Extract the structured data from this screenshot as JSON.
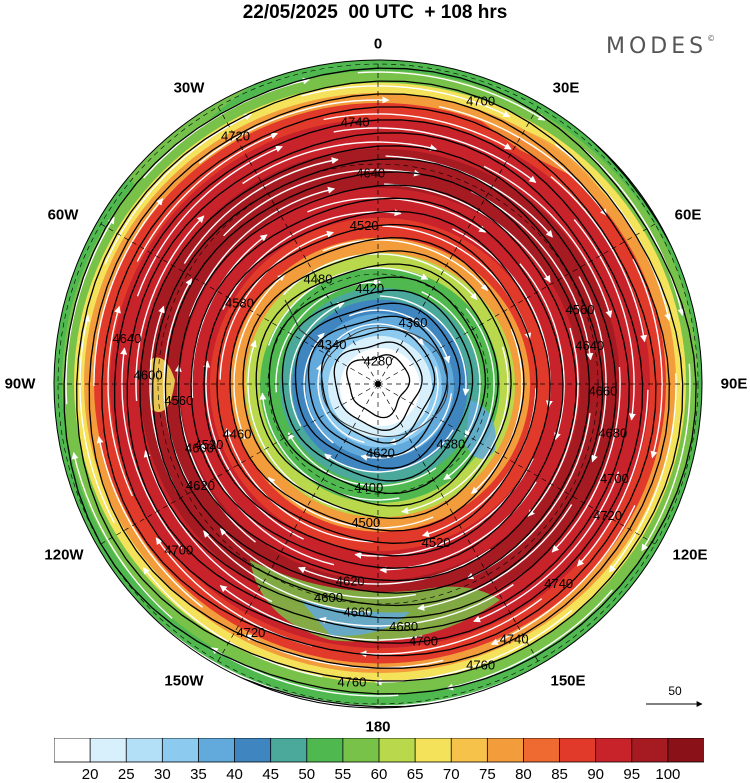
{
  "header": {
    "title": "22/05/2025  00 UTC  + 108 hrs",
    "brand": "MODES",
    "brand_mark": "©"
  },
  "map": {
    "projection": "polar stereographic (south pole)",
    "longitude_labels": {
      "top": "0",
      "top_left": "30W",
      "top_right": "30E",
      "upper_left": "60W",
      "upper_right": "60E",
      "left": "90W",
      "right": "90E",
      "lower_left": "120W",
      "lower_right": "120E",
      "bottom_left": "150W",
      "bottom_right": "150E",
      "bottom": "180"
    },
    "contour_labels": [
      "4280",
      "4360",
      "4340",
      "4420",
      "4480",
      "4520",
      "4640",
      "4740",
      "4720",
      "4700",
      "4640",
      "4600",
      "4560",
      "4520",
      "4460",
      "4620",
      "4380",
      "4400",
      "4500",
      "4580",
      "4520",
      "4620",
      "4600",
      "4660",
      "4680",
      "4700",
      "4720",
      "4760",
      "4740",
      "4560",
      "4640",
      "4660",
      "4680",
      "4700",
      "4720",
      "4740",
      "4760",
      "4600",
      "4620",
      "4700"
    ],
    "wind_scale": {
      "value": "50"
    },
    "colors": {
      "coast": "#333333",
      "contour": "#000000",
      "streamline": "#ffffff"
    }
  },
  "colorbar": {
    "ticks": [
      "20",
      "25",
      "30",
      "35",
      "40",
      "45",
      "50",
      "55",
      "60",
      "65",
      "70",
      "75",
      "80",
      "85",
      "90",
      "95",
      "100"
    ],
    "colors": [
      "#ffffff",
      "#d8f0fb",
      "#b3e0f6",
      "#8ccaef",
      "#62a9dc",
      "#3f86c0",
      "#4aa99b",
      "#4fb84f",
      "#79c24a",
      "#b9d84c",
      "#f3e25a",
      "#f6c24a",
      "#f39c3c",
      "#ee6a30",
      "#e23a2a",
      "#c8232a",
      "#a61b22",
      "#8a1118"
    ]
  }
}
